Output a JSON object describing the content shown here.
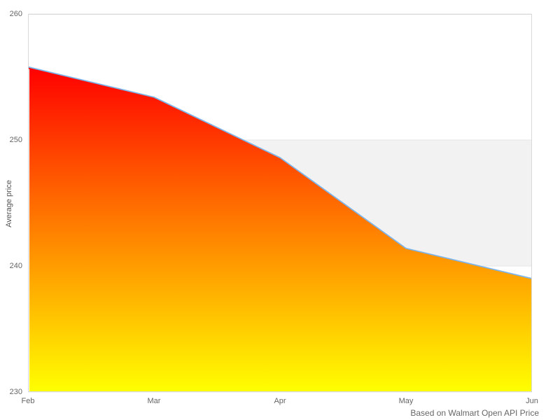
{
  "chart_data": {
    "type": "area",
    "categories": [
      "Feb",
      "Mar",
      "Apr",
      "May",
      "Jun"
    ],
    "values": [
      255.8,
      253.4,
      248.6,
      241.4,
      239.0
    ],
    "title": "",
    "xlabel": "",
    "ylabel": "Average price",
    "ylim": [
      230,
      260
    ],
    "y_ticks": [
      230,
      240,
      250,
      260
    ],
    "plot_band": {
      "from": 240,
      "to": 250,
      "color": "#f2f2f2"
    },
    "grid": true,
    "legend": "none",
    "credits": "Based on Walmart Open API Price",
    "colors": {
      "line": "#7cb5ec",
      "fill_top": "#ff0000",
      "fill_bottom": "#ffff00",
      "gridline": "#e6e6e6",
      "plot_border": "#d9d9d9",
      "label": "#666666",
      "background": "#ffffff"
    }
  }
}
